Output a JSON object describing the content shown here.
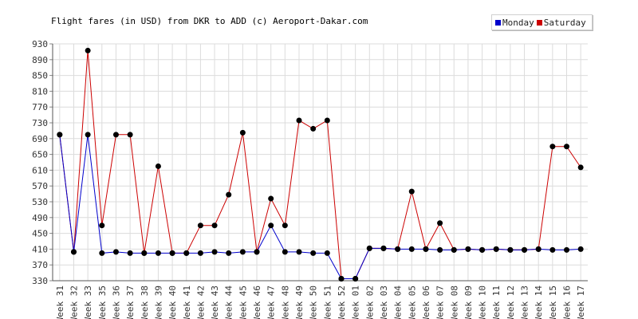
{
  "chart_data": {
    "type": "line",
    "title": "Flight fares (in USD) from DKR to ADD (c) Aeroport-Dakar.com",
    "xlabel": "",
    "ylabel": "",
    "ylim": [
      330,
      930
    ],
    "yticks": [
      330,
      370,
      410,
      450,
      490,
      530,
      570,
      610,
      650,
      690,
      730,
      770,
      810,
      850,
      890,
      930
    ],
    "grid": true,
    "legend_position": "top-right",
    "categories": [
      "Week 31",
      "Week 32",
      "Week 33",
      "Week 35",
      "Week 36",
      "Week 37",
      "Week 38",
      "Week 39",
      "Week 40",
      "Week 41",
      "Week 42",
      "Week 43",
      "Week 44",
      "Week 45",
      "Week 46",
      "Week 47",
      "Week 48",
      "Week 49",
      "Week 50",
      "Week 51",
      "Week 52",
      "Week 01",
      "Week 02",
      "Week 03",
      "Week 04",
      "Week 05",
      "Week 06",
      "Week 07",
      "Week 08",
      "Week 09",
      "Week 10",
      "Week 11",
      "Week 12",
      "Week 13",
      "Week 14",
      "Week 15",
      "Week 16",
      "Week 17"
    ],
    "series": [
      {
        "name": "Monday",
        "color": "#0000cc",
        "values": [
          700,
          403,
          700,
          400,
          403,
          400,
          400,
          400,
          400,
          400,
          400,
          403,
          400,
          403,
          403,
          470,
          403,
          403,
          400,
          400,
          335,
          335,
          412,
          412,
          410,
          410,
          410,
          408,
          408,
          410,
          408,
          410,
          408,
          408,
          410,
          408,
          408,
          410
        ]
      },
      {
        "name": "Saturday",
        "color": "#cc0000",
        "values": [
          700,
          403,
          913,
          470,
          700,
          700,
          400,
          620,
          400,
          400,
          470,
          470,
          548,
          705,
          403,
          538,
          470,
          736,
          715,
          736,
          335,
          335,
          412,
          412,
          410,
          556,
          410,
          476,
          408,
          410,
          408,
          410,
          408,
          408,
          410,
          670,
          670,
          617
        ]
      }
    ]
  }
}
